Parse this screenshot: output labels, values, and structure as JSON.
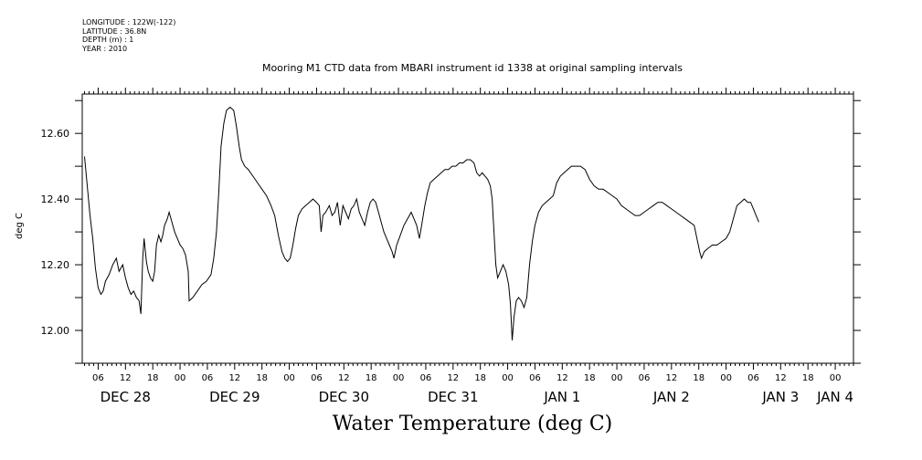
{
  "header": {
    "longitude": "LONGITUDE : 122W(-122)",
    "latitude": "LATITUDE : 36.8N",
    "depth": "DEPTH (m) : 1",
    "year": "YEAR : 2010"
  },
  "chart_data": {
    "type": "line",
    "title": "Mooring M1 CTD data from MBARI instrument id 1338 at original sampling intervals",
    "xlabel": "Water Temperature (deg C)",
    "ylabel": "deg C",
    "ylim": [
      11.9,
      12.72
    ],
    "xlim_hours": [
      -21.5,
      148
    ],
    "y_ticks": [
      12.0,
      12.2,
      12.4,
      12.6
    ],
    "y_tick_labels": [
      "12.00",
      "12.20",
      "12.40",
      "12.60"
    ],
    "x_hour_ticks": [
      {
        "h": -18,
        "label": "06"
      },
      {
        "h": -12,
        "label": "12"
      },
      {
        "h": -6,
        "label": "18"
      },
      {
        "h": 0,
        "label": "00"
      },
      {
        "h": 6,
        "label": "06"
      },
      {
        "h": 12,
        "label": "12"
      },
      {
        "h": 18,
        "label": "18"
      },
      {
        "h": 24,
        "label": "00"
      },
      {
        "h": 30,
        "label": "06"
      },
      {
        "h": 36,
        "label": "12"
      },
      {
        "h": 42,
        "label": "18"
      },
      {
        "h": 48,
        "label": "00"
      },
      {
        "h": 54,
        "label": "06"
      },
      {
        "h": 60,
        "label": "12"
      },
      {
        "h": 66,
        "label": "18"
      },
      {
        "h": 72,
        "label": "00"
      },
      {
        "h": 78,
        "label": "06"
      },
      {
        "h": 84,
        "label": "12"
      },
      {
        "h": 90,
        "label": "18"
      },
      {
        "h": 96,
        "label": "00"
      },
      {
        "h": 102,
        "label": "06"
      },
      {
        "h": 108,
        "label": "12"
      },
      {
        "h": 114,
        "label": "18"
      },
      {
        "h": 120,
        "label": "00"
      },
      {
        "h": 126,
        "label": "06"
      },
      {
        "h": 132,
        "label": "12"
      },
      {
        "h": 138,
        "label": "18"
      },
      {
        "h": 144,
        "label": "00"
      }
    ],
    "x_day_labels": [
      {
        "h": -12,
        "label": "DEC 28"
      },
      {
        "h": 12,
        "label": "DEC 29"
      },
      {
        "h": 36,
        "label": "DEC 30"
      },
      {
        "h": 60,
        "label": "DEC 31"
      },
      {
        "h": 84,
        "label": "JAN  1"
      },
      {
        "h": 108,
        "label": "JAN  2"
      },
      {
        "h": 132,
        "label": "JAN  3"
      },
      {
        "h": 144,
        "label": "JAN  4"
      }
    ],
    "series": [
      {
        "points": [
          [
            -21.0,
            12.53
          ],
          [
            -20.4,
            12.44
          ],
          [
            -19.8,
            12.35
          ],
          [
            -19.2,
            12.28
          ],
          [
            -18.6,
            12.19
          ],
          [
            -18.0,
            12.13
          ],
          [
            -17.4,
            12.11
          ],
          [
            -16.9,
            12.12
          ],
          [
            -16.4,
            12.15
          ],
          [
            -15.6,
            12.17
          ],
          [
            -14.8,
            12.2
          ],
          [
            -14.0,
            12.22
          ],
          [
            -13.4,
            12.18
          ],
          [
            -12.6,
            12.2
          ],
          [
            -12.0,
            12.16
          ],
          [
            -11.4,
            12.13
          ],
          [
            -10.8,
            12.11
          ],
          [
            -10.2,
            12.12
          ],
          [
            -9.6,
            12.1
          ],
          [
            -9.0,
            12.09
          ],
          [
            -8.6,
            12.05
          ],
          [
            -8.2,
            12.22
          ],
          [
            -7.9,
            12.28
          ],
          [
            -7.4,
            12.21
          ],
          [
            -7.0,
            12.18
          ],
          [
            -6.5,
            12.16
          ],
          [
            -6.0,
            12.15
          ],
          [
            -5.6,
            12.18
          ],
          [
            -5.2,
            12.26
          ],
          [
            -4.7,
            12.29
          ],
          [
            -4.2,
            12.27
          ],
          [
            -3.8,
            12.29
          ],
          [
            -3.4,
            12.32
          ],
          [
            -2.8,
            12.34
          ],
          [
            -2.4,
            12.36
          ],
          [
            -1.8,
            12.33
          ],
          [
            -1.2,
            12.3
          ],
          [
            -0.6,
            12.28
          ],
          [
            0.0,
            12.26
          ],
          [
            0.6,
            12.25
          ],
          [
            1.2,
            12.23
          ],
          [
            1.8,
            12.18
          ],
          [
            2.0,
            12.09
          ],
          [
            2.8,
            12.1
          ],
          [
            3.8,
            12.12
          ],
          [
            4.8,
            12.14
          ],
          [
            5.8,
            12.15
          ],
          [
            6.8,
            12.17
          ],
          [
            7.4,
            12.22
          ],
          [
            8.0,
            12.3
          ],
          [
            8.5,
            12.42
          ],
          [
            9.0,
            12.56
          ],
          [
            9.6,
            12.63
          ],
          [
            10.2,
            12.67
          ],
          [
            11.0,
            12.68
          ],
          [
            11.8,
            12.67
          ],
          [
            12.4,
            12.62
          ],
          [
            13.0,
            12.56
          ],
          [
            13.5,
            12.52
          ],
          [
            14.2,
            12.5
          ],
          [
            15.0,
            12.49
          ],
          [
            16.0,
            12.47
          ],
          [
            17.0,
            12.45
          ],
          [
            18.0,
            12.43
          ],
          [
            19.0,
            12.41
          ],
          [
            20.0,
            12.38
          ],
          [
            20.8,
            12.35
          ],
          [
            21.6,
            12.29
          ],
          [
            22.4,
            12.24
          ],
          [
            23.0,
            12.22
          ],
          [
            23.6,
            12.21
          ],
          [
            24.2,
            12.22
          ],
          [
            24.8,
            12.26
          ],
          [
            25.4,
            12.31
          ],
          [
            26.0,
            12.35
          ],
          [
            26.8,
            12.37
          ],
          [
            27.6,
            12.38
          ],
          [
            28.4,
            12.39
          ],
          [
            29.2,
            12.4
          ],
          [
            30.0,
            12.39
          ],
          [
            30.6,
            12.38
          ],
          [
            31.0,
            12.3
          ],
          [
            31.4,
            12.35
          ],
          [
            32.0,
            12.36
          ],
          [
            32.8,
            12.38
          ],
          [
            33.4,
            12.35
          ],
          [
            34.0,
            12.36
          ],
          [
            34.6,
            12.39
          ],
          [
            35.2,
            12.32
          ],
          [
            35.8,
            12.38
          ],
          [
            36.4,
            12.36
          ],
          [
            37.0,
            12.34
          ],
          [
            37.6,
            12.37
          ],
          [
            38.2,
            12.38
          ],
          [
            38.8,
            12.4
          ],
          [
            39.4,
            12.36
          ],
          [
            40.0,
            12.34
          ],
          [
            40.6,
            12.32
          ],
          [
            41.2,
            12.36
          ],
          [
            41.8,
            12.39
          ],
          [
            42.4,
            12.4
          ],
          [
            43.0,
            12.39
          ],
          [
            43.6,
            12.36
          ],
          [
            44.2,
            12.33
          ],
          [
            44.8,
            12.3
          ],
          [
            45.4,
            12.28
          ],
          [
            46.0,
            12.26
          ],
          [
            46.6,
            12.24
          ],
          [
            47.0,
            12.22
          ],
          [
            47.6,
            12.26
          ],
          [
            48.4,
            12.29
          ],
          [
            49.2,
            12.32
          ],
          [
            50.0,
            12.34
          ],
          [
            50.8,
            12.36
          ],
          [
            51.4,
            12.34
          ],
          [
            52.0,
            12.32
          ],
          [
            52.6,
            12.28
          ],
          [
            53.2,
            12.33
          ],
          [
            53.8,
            12.38
          ],
          [
            54.4,
            12.42
          ],
          [
            55.0,
            12.45
          ],
          [
            55.8,
            12.46
          ],
          [
            56.6,
            12.47
          ],
          [
            57.4,
            12.48
          ],
          [
            58.2,
            12.49
          ],
          [
            59.0,
            12.49
          ],
          [
            59.8,
            12.5
          ],
          [
            60.6,
            12.5
          ],
          [
            61.4,
            12.51
          ],
          [
            62.2,
            12.51
          ],
          [
            63.0,
            12.52
          ],
          [
            63.8,
            12.52
          ],
          [
            64.6,
            12.51
          ],
          [
            65.2,
            12.48
          ],
          [
            65.8,
            12.47
          ],
          [
            66.4,
            12.48
          ],
          [
            67.0,
            12.47
          ],
          [
            67.6,
            12.46
          ],
          [
            68.2,
            12.44
          ],
          [
            68.6,
            12.4
          ],
          [
            69.0,
            12.3
          ],
          [
            69.4,
            12.2
          ],
          [
            69.8,
            12.16
          ],
          [
            70.4,
            12.18
          ],
          [
            71.0,
            12.2
          ],
          [
            71.6,
            12.18
          ],
          [
            72.2,
            12.14
          ],
          [
            72.6,
            12.08
          ],
          [
            73.0,
            11.97
          ],
          [
            73.4,
            12.04
          ],
          [
            73.9,
            12.09
          ],
          [
            74.4,
            12.1
          ],
          [
            75.0,
            12.09
          ],
          [
            75.6,
            12.07
          ],
          [
            76.2,
            12.1
          ],
          [
            76.8,
            12.2
          ],
          [
            77.4,
            12.27
          ],
          [
            78.0,
            12.32
          ],
          [
            78.8,
            12.36
          ],
          [
            79.6,
            12.38
          ],
          [
            80.4,
            12.39
          ],
          [
            81.2,
            12.4
          ],
          [
            82.0,
            12.41
          ],
          [
            82.8,
            12.45
          ],
          [
            83.6,
            12.47
          ],
          [
            84.4,
            12.48
          ],
          [
            85.2,
            12.49
          ],
          [
            86.0,
            12.5
          ],
          [
            87.0,
            12.5
          ],
          [
            88.0,
            12.5
          ],
          [
            89.0,
            12.49
          ],
          [
            90.0,
            12.46
          ],
          [
            91.0,
            12.44
          ],
          [
            92.0,
            12.43
          ],
          [
            93.0,
            12.43
          ],
          [
            94.0,
            12.42
          ],
          [
            95.0,
            12.41
          ],
          [
            96.0,
            12.4
          ],
          [
            97.0,
            12.38
          ],
          [
            98.0,
            12.37
          ],
          [
            99.0,
            12.36
          ],
          [
            100.0,
            12.35
          ],
          [
            101.0,
            12.35
          ],
          [
            102.0,
            12.36
          ],
          [
            103.0,
            12.37
          ],
          [
            104.0,
            12.38
          ],
          [
            105.0,
            12.39
          ],
          [
            106.0,
            12.39
          ],
          [
            107.0,
            12.38
          ],
          [
            108.0,
            12.37
          ],
          [
            109.0,
            12.36
          ],
          [
            110.0,
            12.35
          ],
          [
            111.0,
            12.34
          ],
          [
            112.0,
            12.33
          ],
          [
            113.0,
            12.32
          ],
          [
            113.6,
            12.28
          ],
          [
            114.2,
            12.24
          ],
          [
            114.6,
            12.22
          ],
          [
            115.2,
            12.24
          ],
          [
            116.0,
            12.25
          ],
          [
            117.0,
            12.26
          ],
          [
            118.0,
            12.26
          ],
          [
            119.0,
            12.27
          ],
          [
            120.0,
            12.28
          ],
          [
            120.8,
            12.3
          ],
          [
            121.6,
            12.34
          ],
          [
            122.4,
            12.38
          ],
          [
            123.2,
            12.39
          ],
          [
            124.0,
            12.4
          ],
          [
            124.8,
            12.39
          ],
          [
            125.4,
            12.39
          ],
          [
            126.0,
            12.37
          ],
          [
            126.6,
            12.35
          ],
          [
            127.2,
            12.33
          ]
        ]
      }
    ]
  }
}
